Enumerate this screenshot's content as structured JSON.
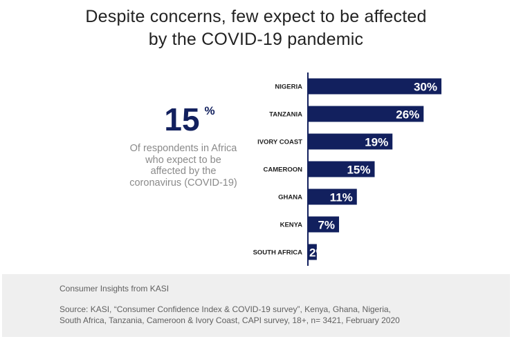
{
  "title": {
    "line1": "Despite concerns, few expect to be affected",
    "line2": "by the COVID-19 pandemic"
  },
  "kpi": {
    "value": "15",
    "unit": "%",
    "description_lines": [
      "Of respondents in Africa",
      "who expect to be",
      "affected by the",
      "coronavirus (COVID-19)"
    ]
  },
  "chart_data": {
    "type": "bar",
    "orientation": "horizontal",
    "title": "",
    "xlabel": "",
    "ylabel": "",
    "categories": [
      "NIGERIA",
      "TANZANIA",
      "IVORY COAST",
      "CAMEROON",
      "GHANA",
      "KENYA",
      "SOUTH AFRICA"
    ],
    "values": [
      30,
      26,
      19,
      15,
      11,
      7,
      2
    ],
    "value_labels": [
      "30%",
      "26%",
      "19%",
      "15%",
      "11%",
      "7%",
      "2%"
    ],
    "xlim": [
      0,
      30
    ],
    "grid": false,
    "legend": "none",
    "colors": {
      "bar": "#12205e",
      "axis": "#12205e",
      "label": "#1f1f1f",
      "value_label": "#ffffff"
    }
  },
  "footer": {
    "heading": "Consumer Insights from KASI",
    "source_lines": [
      "Source: KASI, “Consumer Confidence Index & COVID-19 survey”, Kenya, Ghana, Nigeria,",
      "South Africa, Tanzania, Cameroon & Ivory Coast, CAPI survey, 18+, n= 3421, February 2020"
    ]
  }
}
